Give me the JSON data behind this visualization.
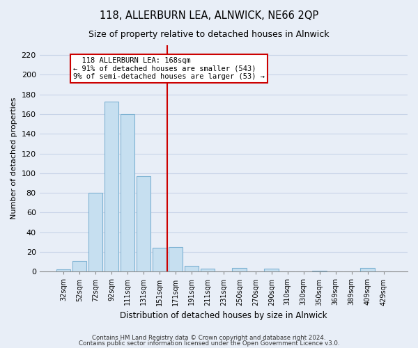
{
  "title": "118, ALLERBURN LEA, ALNWICK, NE66 2QP",
  "subtitle": "Size of property relative to detached houses in Alnwick",
  "xlabel": "Distribution of detached houses by size in Alnwick",
  "ylabel": "Number of detached properties",
  "bar_labels": [
    "32sqm",
    "52sqm",
    "72sqm",
    "92sqm",
    "111sqm",
    "131sqm",
    "151sqm",
    "171sqm",
    "191sqm",
    "211sqm",
    "231sqm",
    "250sqm",
    "270sqm",
    "290sqm",
    "310sqm",
    "330sqm",
    "350sqm",
    "369sqm",
    "389sqm",
    "409sqm",
    "429sqm"
  ],
  "bar_values": [
    2,
    11,
    80,
    173,
    160,
    97,
    24,
    25,
    6,
    3,
    0,
    4,
    0,
    3,
    0,
    0,
    1,
    0,
    0,
    4,
    0
  ],
  "bar_color": "#c6dff0",
  "bar_edge_color": "#7fb3d3",
  "vline_index": 7,
  "vline_color": "#cc0000",
  "annotation_title": "118 ALLERBURN LEA: 168sqm",
  "annotation_line1": "← 91% of detached houses are smaller (543)",
  "annotation_line2": "9% of semi-detached houses are larger (53) →",
  "ylim": [
    0,
    230
  ],
  "yticks": [
    0,
    20,
    40,
    60,
    80,
    100,
    120,
    140,
    160,
    180,
    200,
    220
  ],
  "footnote1": "Contains HM Land Registry data © Crown copyright and database right 2024.",
  "footnote2": "Contains public sector information licensed under the Open Government Licence v3.0.",
  "bg_color": "#e8eef7",
  "grid_color": "#c8d4e8"
}
